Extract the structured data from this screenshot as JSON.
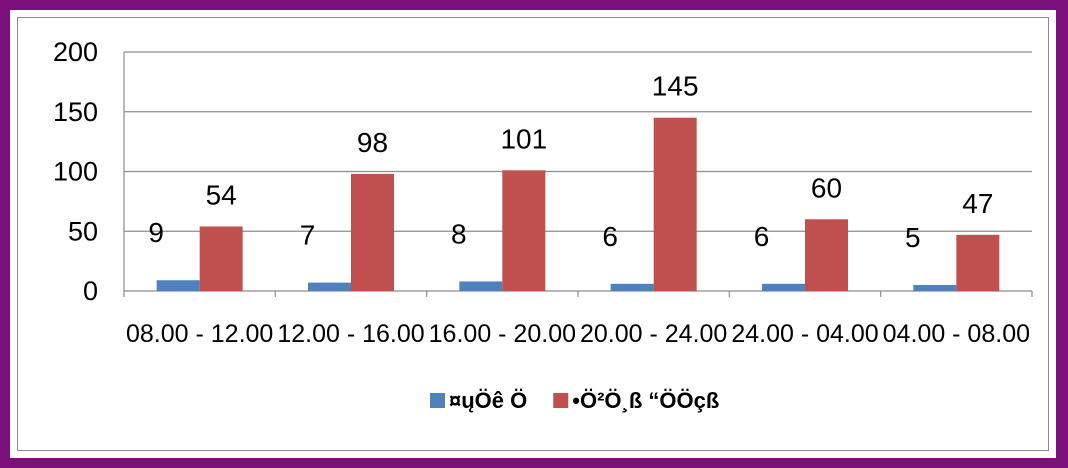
{
  "chart_data": {
    "type": "bar",
    "categories": [
      "08.00 - 12.00",
      "12.00 - 16.00",
      "16.00 - 20.00",
      "20.00 - 24.00",
      "24.00 - 04.00",
      "04.00 - 08.00"
    ],
    "series": [
      {
        "name": "¤ųÖê Ö",
        "color": "#4f81bd",
        "values": [
          9,
          7,
          8,
          6,
          6,
          5
        ]
      },
      {
        "name": "•Ö²Ö¸ß “ÖÖçß",
        "color": "#c0504d",
        "values": [
          54,
          98,
          101,
          145,
          60,
          47
        ]
      }
    ],
    "ylim": [
      0,
      200
    ],
    "yticks": [
      0,
      50,
      100,
      150,
      200
    ],
    "gridlines": true,
    "legend_position": "bottom"
  }
}
